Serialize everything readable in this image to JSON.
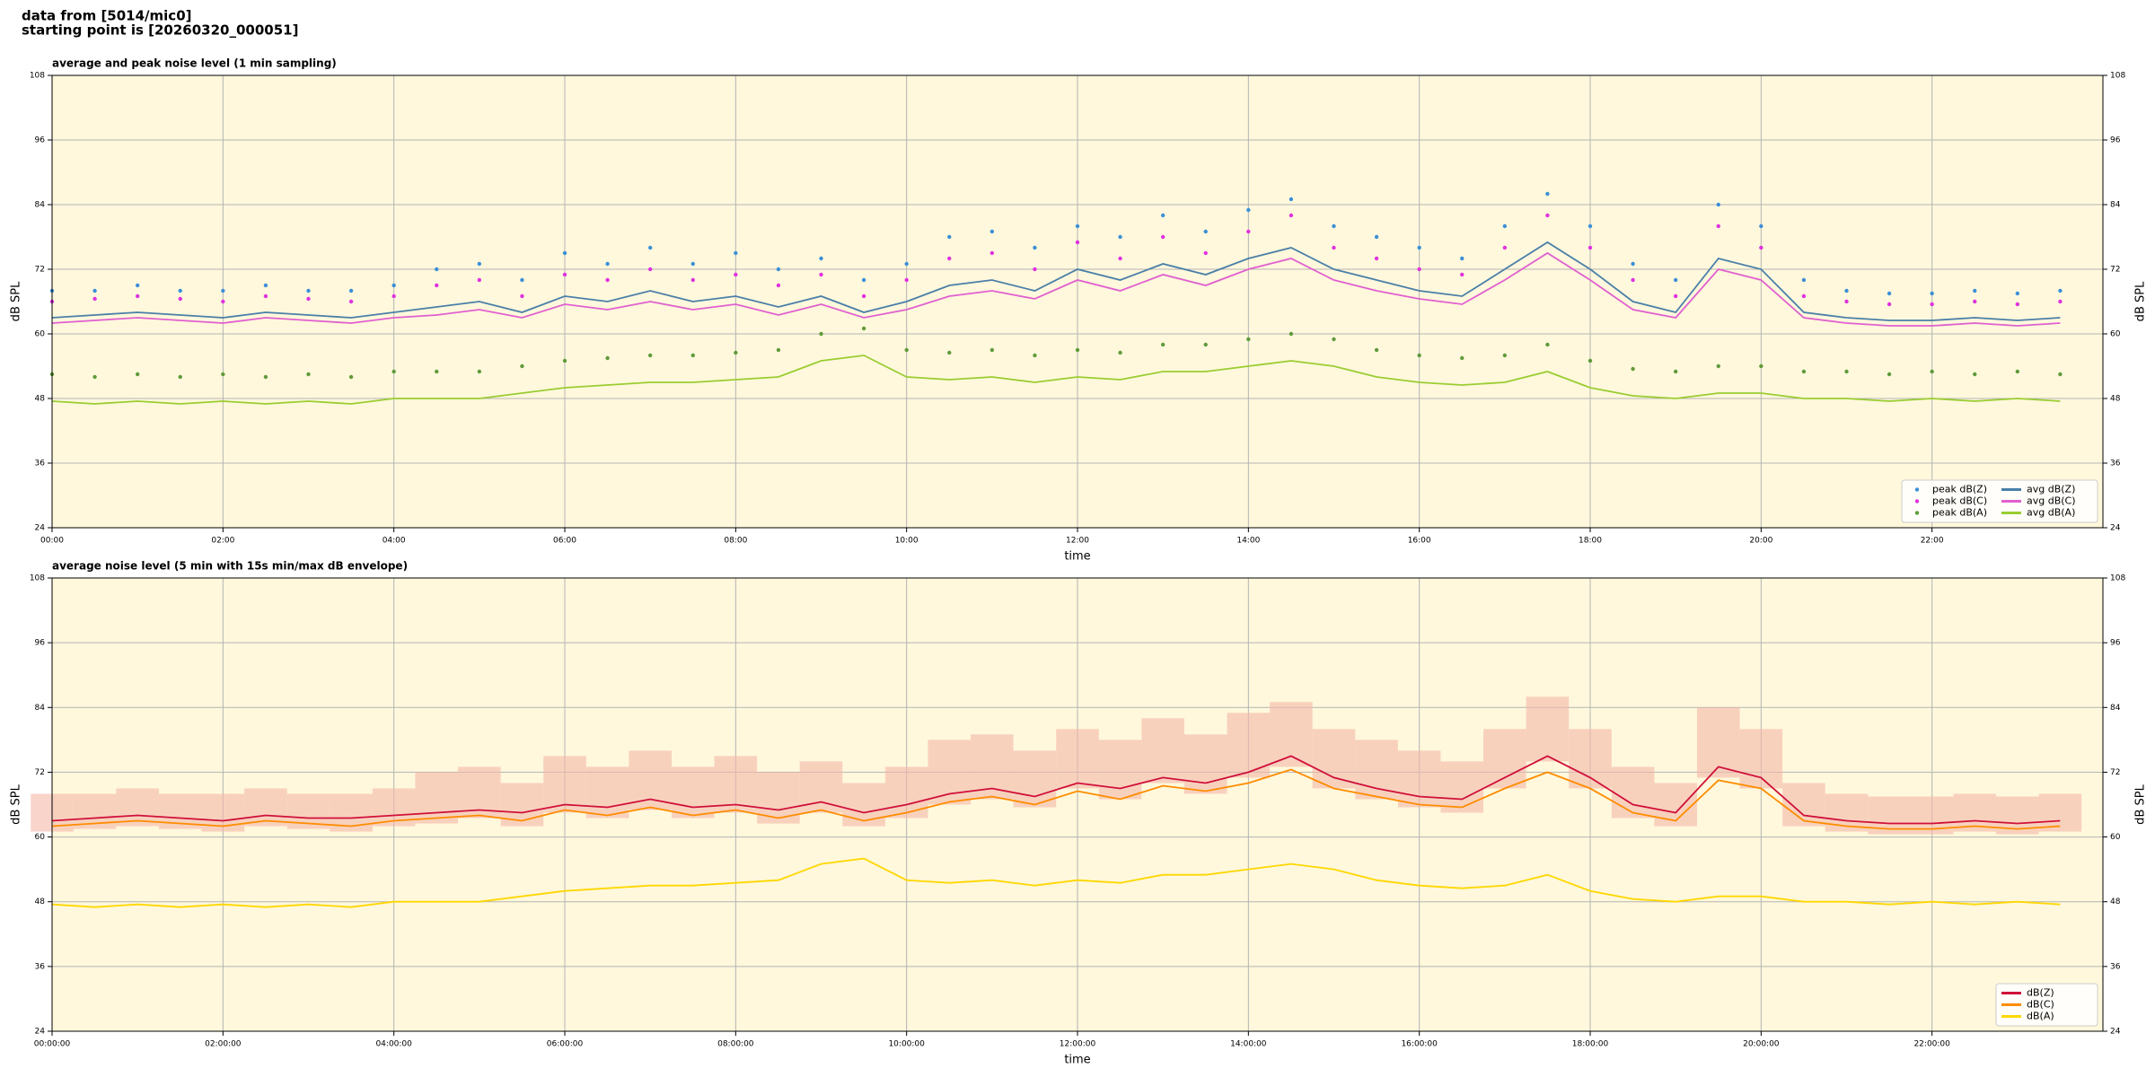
{
  "header": {
    "lines": [
      "data from [5014/mic0]",
      "starting point is [20260320_000051]"
    ]
  },
  "chart_data": [
    {
      "type": "line",
      "title": "average and peak noise level (1 min sampling)",
      "xlabel": "time",
      "ylabel": "dB SPL",
      "x": [
        0,
        30,
        60,
        90,
        120,
        150,
        180,
        210,
        240,
        270,
        300,
        330,
        360,
        390,
        420,
        450,
        480,
        510,
        540,
        570,
        600,
        630,
        660,
        690,
        720,
        750,
        780,
        810,
        840,
        870,
        900,
        930,
        960,
        990,
        1020,
        1050,
        1080,
        1110,
        1140,
        1170,
        1200,
        1230,
        1260,
        1290,
        1320,
        1350,
        1380,
        1410
      ],
      "xlim": [
        0,
        1440
      ],
      "xticks": [
        {
          "value": 0,
          "label": "00:00"
        },
        {
          "value": 120,
          "label": "02:00"
        },
        {
          "value": 240,
          "label": "04:00"
        },
        {
          "value": 360,
          "label": "06:00"
        },
        {
          "value": 480,
          "label": "08:00"
        },
        {
          "value": 600,
          "label": "10:00"
        },
        {
          "value": 720,
          "label": "12:00"
        },
        {
          "value": 840,
          "label": "14:00"
        },
        {
          "value": 960,
          "label": "16:00"
        },
        {
          "value": 1080,
          "label": "18:00"
        },
        {
          "value": 1200,
          "label": "20:00"
        },
        {
          "value": 1320,
          "label": "22:00"
        }
      ],
      "ylim": [
        24,
        108
      ],
      "yticks": [
        24,
        36,
        48,
        60,
        72,
        84,
        96,
        108
      ],
      "grid": true,
      "legend": "lower right",
      "legend_columns": 2,
      "series": [
        {
          "name": "peak dB(Z)",
          "type": "scatter",
          "color": "#3a8fd8",
          "values": [
            68,
            68,
            69,
            68,
            68,
            69,
            68,
            68,
            69,
            72,
            73,
            70,
            75,
            73,
            76,
            73,
            75,
            72,
            74,
            70,
            73,
            78,
            79,
            76,
            80,
            78,
            82,
            79,
            83,
            85,
            80,
            78,
            76,
            74,
            80,
            86,
            80,
            73,
            70,
            84,
            80,
            70,
            68,
            67.5,
            67.5,
            68,
            67.5,
            68
          ]
        },
        {
          "name": "peak dB(C)",
          "type": "scatter",
          "color": "#e030e0",
          "values": [
            66,
            66.5,
            67,
            66.5,
            66,
            67,
            66.5,
            66,
            67,
            69,
            70,
            67,
            71,
            70,
            72,
            70,
            71,
            69,
            71,
            67,
            70,
            74,
            75,
            72,
            77,
            74,
            78,
            75,
            79,
            82,
            76,
            74,
            72,
            71,
            76,
            82,
            76,
            70,
            67,
            80,
            76,
            67,
            66,
            65.5,
            65.5,
            66,
            65.5,
            66
          ]
        },
        {
          "name": "peak dB(A)",
          "type": "scatter",
          "color": "#5f9a3a",
          "values": [
            52.5,
            52,
            52.5,
            52,
            52.5,
            52,
            52.5,
            52,
            53,
            53,
            53,
            54,
            55,
            55.5,
            56,
            56,
            56.5,
            57,
            60,
            61,
            57,
            56.5,
            57,
            56,
            57,
            56.5,
            58,
            58,
            59,
            60,
            59,
            57,
            56,
            55.5,
            56,
            58,
            55,
            53.5,
            53,
            54,
            54,
            53,
            53,
            52.5,
            53,
            52.5,
            53,
            52.5
          ]
        },
        {
          "name": "avg dB(Z)",
          "type": "line",
          "color": "#4a7fa8",
          "values": [
            63,
            63.5,
            64,
            63.5,
            63,
            64,
            63.5,
            63,
            64,
            65,
            66,
            64,
            67,
            66,
            68,
            66,
            67,
            65,
            67,
            64,
            66,
            69,
            70,
            68,
            72,
            70,
            73,
            71,
            74,
            76,
            72,
            70,
            68,
            67,
            72,
            77,
            72,
            66,
            64,
            74,
            72,
            64,
            63,
            62.5,
            62.5,
            63,
            62.5,
            63
          ]
        },
        {
          "name": "avg dB(C)",
          "type": "line",
          "color": "#e060d0",
          "values": [
            62,
            62.5,
            63,
            62.5,
            62,
            63,
            62.5,
            62,
            63,
            63.5,
            64.5,
            63,
            65.5,
            64.5,
            66,
            64.5,
            65.5,
            63.5,
            65.5,
            63,
            64.5,
            67,
            68,
            66.5,
            70,
            68,
            71,
            69,
            72,
            74,
            70,
            68,
            66.5,
            65.5,
            70,
            75,
            70,
            64.5,
            63,
            72,
            70,
            63,
            62,
            61.5,
            61.5,
            62,
            61.5,
            62
          ]
        },
        {
          "name": "avg dB(A)",
          "type": "line",
          "color": "#9acd32",
          "values": [
            47.5,
            47,
            47.5,
            47,
            47.5,
            47,
            47.5,
            47,
            48,
            48,
            48,
            49,
            50,
            50.5,
            51,
            51,
            51.5,
            52,
            55,
            56,
            52,
            51.5,
            52,
            51,
            52,
            51.5,
            53,
            53,
            54,
            55,
            54,
            52,
            51,
            50.5,
            51,
            53,
            50,
            48.5,
            48,
            49,
            49,
            48,
            48,
            47.5,
            48,
            47.5,
            48,
            47.5
          ]
        }
      ]
    },
    {
      "type": "line",
      "title": "average noise level (5 min with 15s min/max dB envelope)",
      "xlabel": "time",
      "ylabel": "dB SPL",
      "x": [
        0,
        30,
        60,
        90,
        120,
        150,
        180,
        210,
        240,
        270,
        300,
        330,
        360,
        390,
        420,
        450,
        480,
        510,
        540,
        570,
        600,
        630,
        660,
        690,
        720,
        750,
        780,
        810,
        840,
        870,
        900,
        930,
        960,
        990,
        1020,
        1050,
        1080,
        1110,
        1140,
        1170,
        1200,
        1230,
        1260,
        1290,
        1320,
        1350,
        1380,
        1410
      ],
      "xlim": [
        0,
        1440
      ],
      "xticks": [
        {
          "value": 0,
          "label": "00:00:00"
        },
        {
          "value": 120,
          "label": "02:00:00"
        },
        {
          "value": 240,
          "label": "04:00:00"
        },
        {
          "value": 360,
          "label": "06:00:00"
        },
        {
          "value": 480,
          "label": "08:00:00"
        },
        {
          "value": 600,
          "label": "10:00:00"
        },
        {
          "value": 720,
          "label": "12:00:00"
        },
        {
          "value": 840,
          "label": "14:00:00"
        },
        {
          "value": 960,
          "label": "16:00:00"
        },
        {
          "value": 1080,
          "label": "18:00:00"
        },
        {
          "value": 1200,
          "label": "20:00:00"
        },
        {
          "value": 1320,
          "label": "22:00:00"
        }
      ],
      "ylim": [
        24,
        108
      ],
      "yticks": [
        24,
        36,
        48,
        60,
        72,
        84,
        96,
        108
      ],
      "grid": true,
      "legend": "lower right",
      "legend_columns": 1,
      "band": {
        "color": "#f4b8a8",
        "low": [
          61,
          61.5,
          62,
          61.5,
          61,
          62,
          61.5,
          61,
          62,
          62.5,
          63.5,
          62,
          64.5,
          63.5,
          65,
          63.5,
          64.5,
          62.5,
          64.5,
          62,
          63.5,
          66,
          67,
          65.5,
          69,
          67,
          70,
          68,
          71,
          73,
          69,
          67,
          65.5,
          64.5,
          69,
          74,
          69,
          63.5,
          62,
          71,
          69,
          62,
          61,
          60.5,
          60.5,
          61,
          60.5,
          61
        ],
        "high": [
          68,
          68,
          69,
          68,
          68,
          69,
          68,
          68,
          69,
          72,
          73,
          70,
          75,
          73,
          76,
          73,
          75,
          72,
          74,
          70,
          73,
          78,
          79,
          76,
          80,
          78,
          82,
          79,
          83,
          85,
          80,
          78,
          76,
          74,
          80,
          86,
          80,
          73,
          70,
          84,
          80,
          70,
          68,
          67.5,
          67.5,
          68,
          67.5,
          68
        ]
      },
      "series": [
        {
          "name": "dB(Z)",
          "type": "line",
          "color": "#d0103a",
          "values": [
            63,
            63.5,
            64,
            63.5,
            63,
            64,
            63.5,
            63.5,
            64,
            64.5,
            65,
            64.5,
            66,
            65.5,
            67,
            65.5,
            66,
            65,
            66.5,
            64.5,
            66,
            68,
            69,
            67.5,
            70,
            69,
            71,
            70,
            72,
            75,
            71,
            69,
            67.5,
            67,
            71,
            75,
            71,
            66,
            64.5,
            73,
            71,
            64,
            63,
            62.5,
            62.5,
            63,
            62.5,
            63
          ]
        },
        {
          "name": "dB(C)",
          "type": "line",
          "color": "#ff8c00",
          "values": [
            62,
            62.5,
            63,
            62.5,
            62,
            63,
            62.5,
            62,
            63,
            63.5,
            64,
            63,
            65,
            64,
            65.5,
            64,
            65,
            63.5,
            65,
            63,
            64.5,
            66.5,
            67.5,
            66,
            68.5,
            67,
            69.5,
            68.5,
            70,
            72.5,
            69,
            67.5,
            66,
            65.5,
            69,
            72,
            69,
            64.5,
            63,
            70.5,
            69,
            63,
            62,
            61.5,
            61.5,
            62,
            61.5,
            62
          ]
        },
        {
          "name": "dB(A)",
          "type": "line",
          "color": "#ffd700",
          "values": [
            47.5,
            47,
            47.5,
            47,
            47.5,
            47,
            47.5,
            47,
            48,
            48,
            48,
            49,
            50,
            50.5,
            51,
            51,
            51.5,
            52,
            55,
            56,
            52,
            51.5,
            52,
            51,
            52,
            51.5,
            53,
            53,
            54,
            55,
            54,
            52,
            51,
            50.5,
            51,
            53,
            50,
            48.5,
            48,
            49,
            49,
            48,
            48,
            47.5,
            48,
            47.5,
            48,
            47.5
          ]
        }
      ]
    }
  ]
}
